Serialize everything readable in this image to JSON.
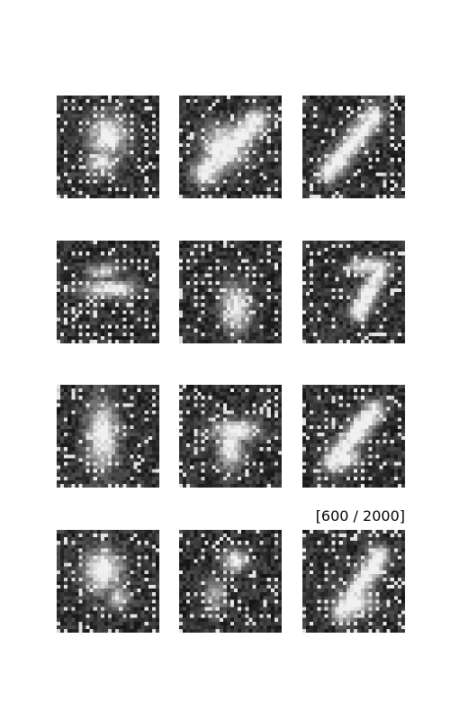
{
  "figure": {
    "caption": "[600 / 2000]",
    "grid": {
      "rows": 4,
      "cols": 3
    },
    "samples": [
      {
        "id": "r1c1",
        "shape": "diffuse-x"
      },
      {
        "id": "r1c2",
        "shape": "diagonal-blob"
      },
      {
        "id": "r1c3",
        "shape": "diagonal-stroke"
      },
      {
        "id": "r2c1",
        "shape": "horizontal-bar"
      },
      {
        "id": "r2c2",
        "shape": "lower-blob"
      },
      {
        "id": "r2c3",
        "shape": "seven-like"
      },
      {
        "id": "r3c1",
        "shape": "tall-blob"
      },
      {
        "id": "r3c2",
        "shape": "center-cross"
      },
      {
        "id": "r3c3",
        "shape": "diagonal-lower"
      },
      {
        "id": "r4c1",
        "shape": "upper-blob"
      },
      {
        "id": "r4c2",
        "shape": "top-dot"
      },
      {
        "id": "r4c3",
        "shape": "diagonal-stroke-2"
      }
    ],
    "colors": {
      "background": "#ffffff",
      "dark": "#111111",
      "light": "#f0f0f0"
    }
  }
}
